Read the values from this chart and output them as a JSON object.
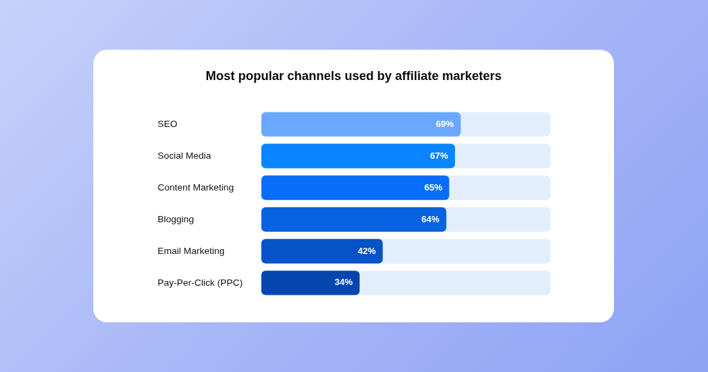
{
  "chart_data": {
    "type": "bar",
    "orientation": "horizontal",
    "title": "Most popular channels used by affiliate marketers",
    "categories": [
      "SEO",
      "Social Media",
      "Content Marketing",
      "Blogging",
      "Email Marketing",
      "Pay-Per-Click (PPC)"
    ],
    "values": [
      69,
      67,
      65,
      64,
      42,
      34
    ],
    "colors": [
      "#6aa8ff",
      "#0a84ff",
      "#0a6dfa",
      "#0763e0",
      "#0553c6",
      "#0446ad"
    ],
    "value_labels": [
      "69%",
      "67%",
      "65%",
      "64%",
      "42%",
      "34%"
    ],
    "xlim": [
      0,
      100
    ],
    "tick_labels": "y",
    "legend": false
  }
}
